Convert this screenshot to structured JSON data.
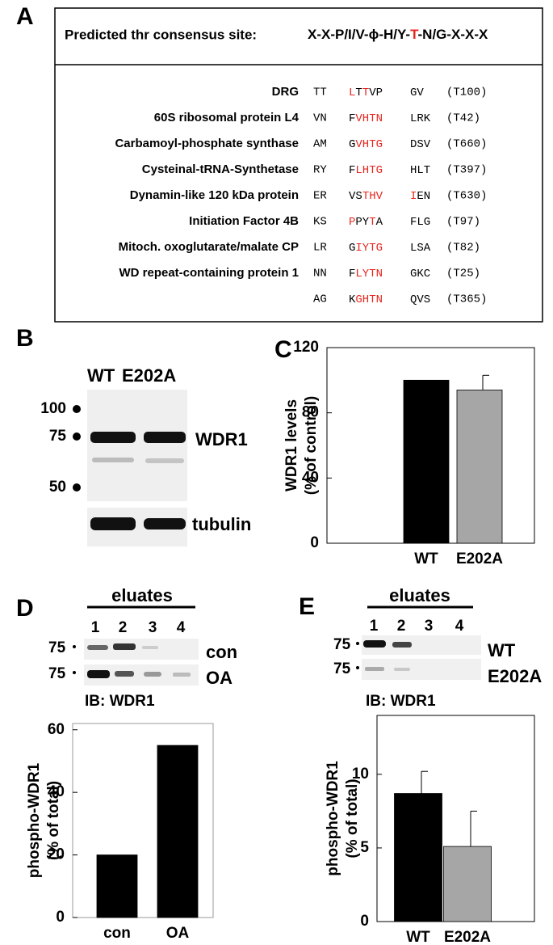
{
  "panel_labels": [
    "A",
    "B",
    "C",
    "D",
    "E"
  ],
  "panel_a": {
    "consensus_title": "Predicted thr consensus site:",
    "consensus": [
      {
        "text": "X-X-P/I/V-",
        "color": "#000000"
      },
      {
        "text": "ϕ",
        "color": "#000000"
      },
      {
        "text": "-H/Y-",
        "color": "#000000"
      },
      {
        "text": "T",
        "color": "#e8251f"
      },
      {
        "text": "-N/G-X-X-X",
        "color": "#000000"
      }
    ],
    "rows": [
      {
        "name": "DRG",
        "pre": "TT",
        "motif": [
          {
            "text": "L",
            "color": "#e8251f"
          },
          {
            "text": "T",
            "color": "#000000"
          },
          {
            "text": "T",
            "color": "#e8251f"
          },
          {
            "text": "VP",
            "color": "#000000"
          }
        ],
        "post": [
          {
            "text": "GV",
            "color": "#000000"
          }
        ],
        "site": "(T100)"
      },
      {
        "name": "60S ribosomal protein L4",
        "pre": "VN",
        "motif": [
          {
            "text": "F",
            "color": "#000000"
          },
          {
            "text": "VHTN",
            "color": "#e8251f"
          }
        ],
        "post": [
          {
            "text": "LRK",
            "color": "#000000"
          }
        ],
        "site": "(T42)"
      },
      {
        "name": "Carbamoyl-phosphate synthase",
        "pre": "AM",
        "motif": [
          {
            "text": "G",
            "color": "#000000"
          },
          {
            "text": "VHTG",
            "color": "#e8251f"
          }
        ],
        "post": [
          {
            "text": "DSV",
            "color": "#000000"
          }
        ],
        "site": "(T660)"
      },
      {
        "name": "Cysteinal-tRNA-Synthetase",
        "pre": "RY",
        "motif": [
          {
            "text": "F",
            "color": "#000000"
          },
          {
            "text": "LHTG",
            "color": "#e8251f"
          }
        ],
        "post": [
          {
            "text": "HLT",
            "color": "#000000"
          }
        ],
        "site": "(T397)"
      },
      {
        "name": "Dynamin-like 120 kDa protein",
        "pre": "ER",
        "motif": [
          {
            "text": "VS",
            "color": "#000000"
          },
          {
            "text": "THV",
            "color": "#e8251f"
          }
        ],
        "post": [
          {
            "text": "I",
            "color": "#e8251f"
          },
          {
            "text": "EN",
            "color": "#000000"
          }
        ],
        "site": "(T630)"
      },
      {
        "name": "Initiation Factor 4B",
        "pre": "KS",
        "motif": [
          {
            "text": "P",
            "color": "#e8251f"
          },
          {
            "text": "PY",
            "color": "#000000"
          },
          {
            "text": "T",
            "color": "#e8251f"
          },
          {
            "text": "A",
            "color": "#000000"
          }
        ],
        "post": [
          {
            "text": "FLG",
            "color": "#000000"
          }
        ],
        "site": "(T97)"
      },
      {
        "name": "Mitoch. oxoglutarate/malate CP",
        "pre": "LR",
        "motif": [
          {
            "text": "G",
            "color": "#000000"
          },
          {
            "text": "IYTG",
            "color": "#e8251f"
          }
        ],
        "post": [
          {
            "text": "LSA",
            "color": "#000000"
          }
        ],
        "site": "(T82)"
      },
      {
        "name": "WD repeat-containing protein 1",
        "pre": "NN",
        "motif": [
          {
            "text": "F",
            "color": "#000000"
          },
          {
            "text": "LYTN",
            "color": "#e8251f"
          }
        ],
        "post": [
          {
            "text": "GKC",
            "color": "#000000"
          }
        ],
        "site": "(T25)"
      },
      {
        "pre": "AG",
        "motif": [
          {
            "text": "K",
            "color": "#000000"
          },
          {
            "text": "GHTN",
            "color": "#e8251f"
          }
        ],
        "post": [
          {
            "text": "QVS",
            "color": "#000000"
          }
        ],
        "site": "(T365)"
      }
    ]
  },
  "panel_b": {
    "lanes": [
      "WT",
      "E202A"
    ],
    "markers": [
      "100",
      "75",
      "50"
    ],
    "bands": [
      "WDR1",
      "tubulin"
    ]
  },
  "panel_d": {
    "eluates": "eluates",
    "lanes": [
      "1",
      "2",
      "3",
      "4"
    ],
    "markers": [
      "75",
      "75"
    ],
    "rows": [
      "con",
      "OA"
    ],
    "ib": "IB: WDR1"
  },
  "panel_e": {
    "eluates": "eluates",
    "lanes": [
      "1",
      "2",
      "3",
      "4"
    ],
    "markers": [
      "75",
      "75"
    ],
    "rows": [
      "WT",
      "E202A"
    ],
    "ib": "IB: WDR1"
  },
  "chart_data": [
    {
      "type": "bar",
      "y_label": [
        "WDR1 levels",
        "(% of control)"
      ],
      "categories": [
        "WT",
        "E202A"
      ],
      "values": [
        100,
        94
      ],
      "errors": [
        null,
        9
      ],
      "colors": [
        "#000000",
        "#a6a6a6"
      ],
      "ylim": [
        0,
        120
      ],
      "yticks": [
        0,
        40,
        80,
        120
      ]
    },
    {
      "type": "bar",
      "y_label": [
        "phospho-WDR1",
        "(% of total)"
      ],
      "categories": [
        "con",
        "OA"
      ],
      "values": [
        20,
        55
      ],
      "errors": [
        null,
        null
      ],
      "colors": [
        "#000000",
        "#000000"
      ],
      "ylim": [
        0,
        62
      ],
      "yticks": [
        0,
        20,
        40,
        60
      ]
    },
    {
      "type": "bar",
      "y_label": [
        "phospho-WDR1",
        "(% of total)"
      ],
      "categories": [
        "WT",
        "E202A"
      ],
      "values": [
        8.7,
        5.1
      ],
      "errors": [
        1.5,
        2.4
      ],
      "colors": [
        "#000000",
        "#a6a6a6"
      ],
      "ylim": [
        0,
        14
      ],
      "yticks": [
        0,
        5,
        10
      ]
    }
  ]
}
